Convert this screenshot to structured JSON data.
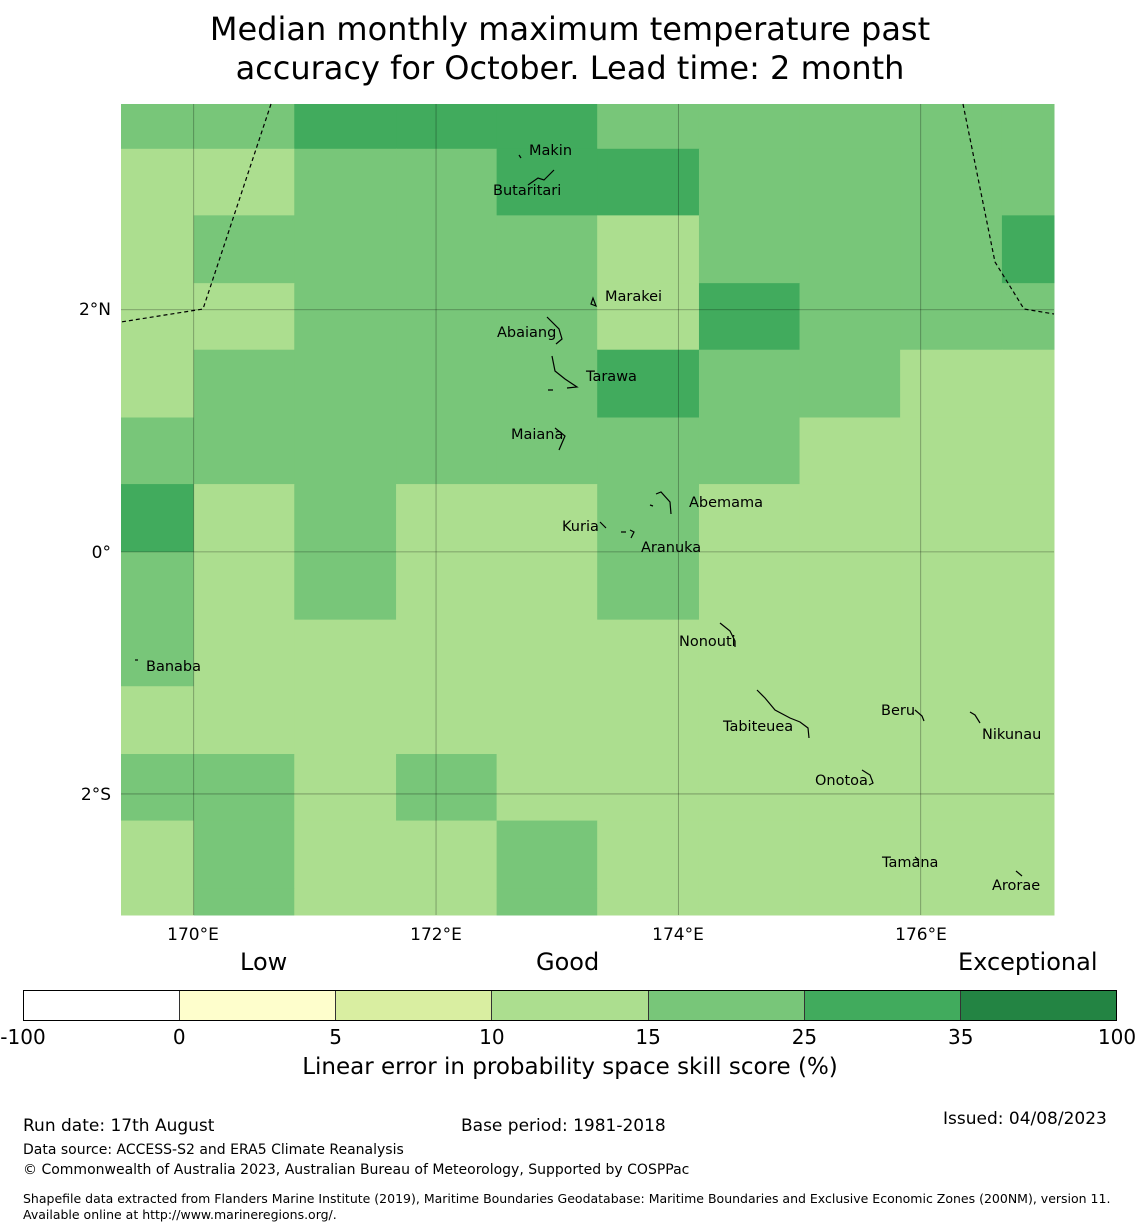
{
  "title_line1": "Median monthly maximum temperature past",
  "title_line2": "accuracy for October. Lead time: 2 month",
  "map": {
    "lon_range": [
      169.4,
      177.1
    ],
    "lat_range": [
      -3.0,
      3.7
    ],
    "x_ticks": [
      {
        "value": 170,
        "label": "170°E"
      },
      {
        "value": 172,
        "label": "172°E"
      },
      {
        "value": 174,
        "label": "174°E"
      },
      {
        "value": 176,
        "label": "176°E"
      }
    ],
    "y_ticks": [
      {
        "value": 2,
        "label": "2°N"
      },
      {
        "value": 0,
        "label": "0°"
      },
      {
        "value": -2,
        "label": "2°S"
      }
    ],
    "cell_lon_edges": [
      169.4,
      170.0,
      170.83,
      171.67,
      172.5,
      173.33,
      174.17,
      175.0,
      175.83,
      176.67,
      177.1
    ],
    "cell_lat_edges": [
      3.7,
      3.33,
      2.78,
      2.22,
      1.67,
      1.11,
      0.56,
      0.0,
      -0.56,
      -1.11,
      -1.67,
      -2.22,
      -2.78,
      -3.0
    ],
    "skill_classes": [
      [
        4,
        4,
        5,
        5,
        5,
        4,
        4,
        4,
        4,
        4
      ],
      [
        3,
        3,
        4,
        4,
        5,
        5,
        4,
        4,
        4,
        4
      ],
      [
        3,
        4,
        4,
        4,
        4,
        3,
        4,
        4,
        4,
        5
      ],
      [
        3,
        3,
        4,
        4,
        4,
        3,
        5,
        4,
        4,
        4
      ],
      [
        3,
        4,
        4,
        4,
        4,
        5,
        4,
        4,
        3,
        3
      ],
      [
        4,
        4,
        4,
        4,
        4,
        4,
        4,
        3,
        3,
        3
      ],
      [
        5,
        3,
        4,
        3,
        3,
        4,
        3,
        3,
        3,
        3
      ],
      [
        4,
        3,
        4,
        3,
        3,
        4,
        3,
        3,
        3,
        3
      ],
      [
        4,
        3,
        3,
        3,
        3,
        3,
        3,
        3,
        3,
        3
      ],
      [
        3,
        3,
        3,
        3,
        3,
        3,
        3,
        3,
        3,
        3
      ],
      [
        4,
        4,
        3,
        4,
        3,
        3,
        3,
        3,
        3,
        3
      ],
      [
        3,
        4,
        3,
        3,
        4,
        3,
        3,
        3,
        3,
        3
      ],
      [
        3,
        4,
        3,
        3,
        4,
        3,
        3,
        3,
        3,
        3
      ]
    ],
    "places": [
      {
        "name": "Makin",
        "lon": 172.78,
        "lat": 3.36
      },
      {
        "name": "Butaritari",
        "lon": 172.45,
        "lat": 3.04
      },
      {
        "name": "Marakei",
        "lon": 173.33,
        "lat": 2.1
      },
      {
        "name": "Abaiang",
        "lon": 172.76,
        "lat": 1.83
      },
      {
        "name": "Tarawa",
        "lon": 173.3,
        "lat": 1.45
      },
      {
        "name": "Maiana",
        "lon": 172.75,
        "lat": 0.97
      },
      {
        "name": "Abemama",
        "lon": 174.08,
        "lat": 0.42
      },
      {
        "name": "Kuria",
        "lon": 173.13,
        "lat": 0.23
      },
      {
        "name": "Aranuka",
        "lon": 173.52,
        "lat": 0.05
      },
      {
        "name": "Nonouti",
        "lon": 174.0,
        "lat": -0.72
      },
      {
        "name": "Banaba",
        "lon": 169.53,
        "lat": -0.93
      },
      {
        "name": "Beru",
        "lon": 175.84,
        "lat": -1.3
      },
      {
        "name": "Tabiteuea",
        "lon": 174.75,
        "lat": -1.43
      },
      {
        "name": "Nikunau",
        "lon": 176.5,
        "lat": -1.49
      },
      {
        "name": "Onotoa",
        "lon": 175.56,
        "lat": -1.88
      },
      {
        "name": "Tamana",
        "lon": 175.84,
        "lat": -2.55
      },
      {
        "name": "Arorae",
        "lon": 176.6,
        "lat": -2.74
      }
    ]
  },
  "legend": {
    "category_low": "Low",
    "category_good": "Good",
    "category_exceptional": "Exceptional",
    "colors": [
      "#ffffff",
      "#fefecc",
      "#d9eea1",
      "#acde8f",
      "#78c679",
      "#41ab5d",
      "#238443"
    ],
    "ticks": [
      "-100",
      "0",
      "5",
      "10",
      "15",
      "25",
      "35",
      "100"
    ],
    "label": "Linear error in probability space skill score (%)"
  },
  "footer": {
    "run_date": "Run date: 17th August",
    "base_period": "Base period: 1981-2018",
    "issued": "Issued: 04/08/2023",
    "data_source": "Data source: ACCESS-S2 and ERA5 Climate Reanalysis",
    "copyright": "© Commonwealth of Australia 2023, Australian Bureau of Meteorology, Supported by COSPPac",
    "shapefile": "Shapefile data extracted from Flanders Marine Institute (2019), Maritime Boundaries Geodatabase: Maritime Boundaries and Exclusive Economic Zones (200NM), version 11. Available online at http://www.marineregions.org/."
  }
}
